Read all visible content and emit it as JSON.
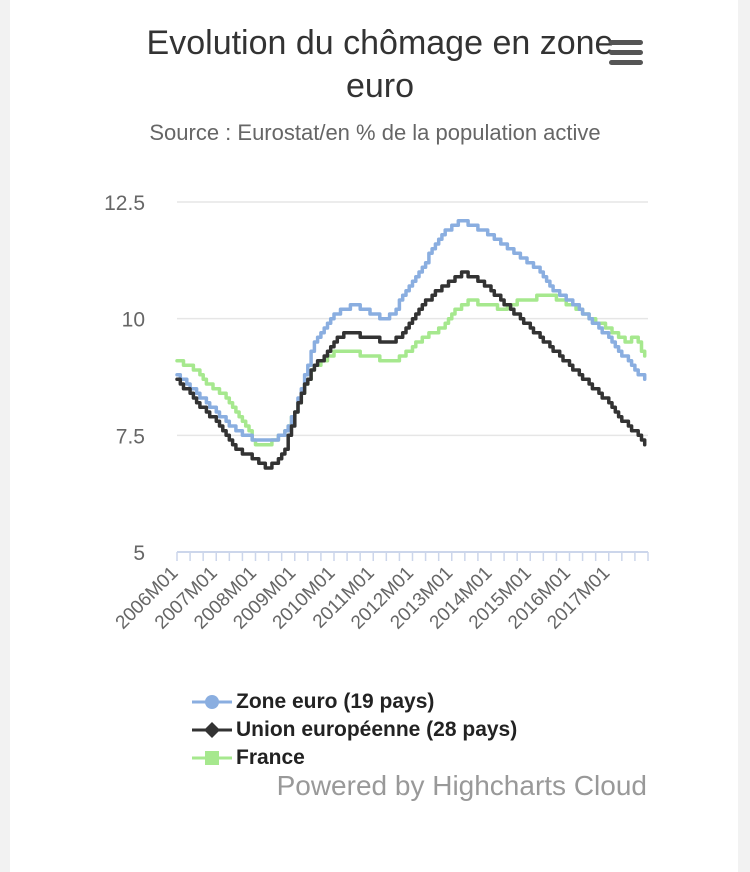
{
  "chart_data": {
    "type": "line",
    "title": "Evolution du chômage en zone euro",
    "subtitle": "Source : Eurostat/en % de la population active",
    "xlabel": "",
    "ylabel": "",
    "ylim": [
      5,
      12.5
    ],
    "yticks": [
      "5",
      "7.5",
      "10",
      "12.5"
    ],
    "xticks": [
      "2006M01",
      "2007M01",
      "2008M01",
      "2009M01",
      "2010M01",
      "2011M01",
      "2012M01",
      "2013M01",
      "2014M01",
      "2015M01",
      "2016M01",
      "2017M01"
    ],
    "x_start": "2006M01",
    "x_end": "2017M12",
    "grid": true,
    "legend_position": "bottom",
    "series": [
      {
        "name": "Zone euro (19 pays)",
        "color": "#8aaee0",
        "marker": "circle",
        "anchors": [
          [
            0,
            8.8
          ],
          [
            6,
            8.4
          ],
          [
            12,
            8.0
          ],
          [
            18,
            7.6
          ],
          [
            24,
            7.4
          ],
          [
            30,
            7.4
          ],
          [
            33,
            7.6
          ],
          [
            36,
            8.0
          ],
          [
            39,
            8.8
          ],
          [
            42,
            9.5
          ],
          [
            45,
            9.8
          ],
          [
            48,
            10.1
          ],
          [
            51,
            10.2
          ],
          [
            54,
            10.3
          ],
          [
            57,
            10.2
          ],
          [
            60,
            10.1
          ],
          [
            63,
            10.0
          ],
          [
            66,
            10.1
          ],
          [
            69,
            10.5
          ],
          [
            72,
            10.8
          ],
          [
            75,
            11.1
          ],
          [
            78,
            11.5
          ],
          [
            81,
            11.8
          ],
          [
            84,
            12.0
          ],
          [
            87,
            12.1
          ],
          [
            90,
            12.0
          ],
          [
            93,
            11.9
          ],
          [
            96,
            11.8
          ],
          [
            99,
            11.6
          ],
          [
            102,
            11.5
          ],
          [
            105,
            11.3
          ],
          [
            108,
            11.2
          ],
          [
            111,
            11.0
          ],
          [
            114,
            10.7
          ],
          [
            117,
            10.5
          ],
          [
            120,
            10.4
          ],
          [
            123,
            10.2
          ],
          [
            126,
            10.0
          ],
          [
            129,
            9.8
          ],
          [
            132,
            9.6
          ],
          [
            135,
            9.3
          ],
          [
            138,
            9.1
          ],
          [
            141,
            8.8
          ],
          [
            143,
            8.7
          ]
        ]
      },
      {
        "name": "Union européenne (28 pays)",
        "color": "#333333",
        "marker": "diamond",
        "anchors": [
          [
            0,
            8.7
          ],
          [
            6,
            8.2
          ],
          [
            12,
            7.8
          ],
          [
            15,
            7.5
          ],
          [
            18,
            7.2
          ],
          [
            24,
            7.0
          ],
          [
            27,
            6.8
          ],
          [
            30,
            6.9
          ],
          [
            33,
            7.2
          ],
          [
            36,
            8.0
          ],
          [
            39,
            8.6
          ],
          [
            42,
            9.0
          ],
          [
            45,
            9.2
          ],
          [
            48,
            9.5
          ],
          [
            51,
            9.7
          ],
          [
            54,
            9.7
          ],
          [
            57,
            9.6
          ],
          [
            60,
            9.6
          ],
          [
            63,
            9.5
          ],
          [
            66,
            9.5
          ],
          [
            69,
            9.7
          ],
          [
            72,
            10.0
          ],
          [
            75,
            10.3
          ],
          [
            78,
            10.5
          ],
          [
            81,
            10.7
          ],
          [
            84,
            10.8
          ],
          [
            87,
            11.0
          ],
          [
            90,
            10.9
          ],
          [
            93,
            10.8
          ],
          [
            96,
            10.6
          ],
          [
            99,
            10.4
          ],
          [
            102,
            10.2
          ],
          [
            105,
            10.0
          ],
          [
            108,
            9.8
          ],
          [
            111,
            9.6
          ],
          [
            114,
            9.4
          ],
          [
            117,
            9.2
          ],
          [
            120,
            9.0
          ],
          [
            123,
            8.8
          ],
          [
            126,
            8.6
          ],
          [
            129,
            8.4
          ],
          [
            132,
            8.2
          ],
          [
            135,
            7.9
          ],
          [
            138,
            7.7
          ],
          [
            141,
            7.5
          ],
          [
            143,
            7.3
          ]
        ]
      },
      {
        "name": "France",
        "color": "#a6e88e",
        "marker": "square",
        "anchors": [
          [
            0,
            9.1
          ],
          [
            3,
            9.0
          ],
          [
            6,
            8.9
          ],
          [
            9,
            8.6
          ],
          [
            12,
            8.5
          ],
          [
            15,
            8.3
          ],
          [
            18,
            8.0
          ],
          [
            21,
            7.7
          ],
          [
            24,
            7.3
          ],
          [
            27,
            7.3
          ],
          [
            30,
            7.4
          ],
          [
            33,
            7.6
          ],
          [
            36,
            8.0
          ],
          [
            39,
            8.6
          ],
          [
            42,
            9.0
          ],
          [
            45,
            9.1
          ],
          [
            48,
            9.3
          ],
          [
            51,
            9.3
          ],
          [
            54,
            9.3
          ],
          [
            57,
            9.2
          ],
          [
            60,
            9.2
          ],
          [
            63,
            9.1
          ],
          [
            66,
            9.1
          ],
          [
            69,
            9.2
          ],
          [
            72,
            9.4
          ],
          [
            75,
            9.6
          ],
          [
            78,
            9.7
          ],
          [
            81,
            9.8
          ],
          [
            84,
            10.1
          ],
          [
            87,
            10.3
          ],
          [
            90,
            10.4
          ],
          [
            93,
            10.3
          ],
          [
            96,
            10.3
          ],
          [
            99,
            10.2
          ],
          [
            102,
            10.3
          ],
          [
            105,
            10.4
          ],
          [
            108,
            10.4
          ],
          [
            111,
            10.5
          ],
          [
            114,
            10.5
          ],
          [
            117,
            10.4
          ],
          [
            120,
            10.3
          ],
          [
            123,
            10.2
          ],
          [
            126,
            10.0
          ],
          [
            129,
            9.9
          ],
          [
            132,
            9.8
          ],
          [
            135,
            9.6
          ],
          [
            138,
            9.5
          ],
          [
            140,
            9.6
          ],
          [
            143,
            9.2
          ]
        ]
      }
    ]
  },
  "menu": {
    "icon": "hamburger-menu-icon"
  },
  "credits": "Powered by Highcharts Cloud"
}
